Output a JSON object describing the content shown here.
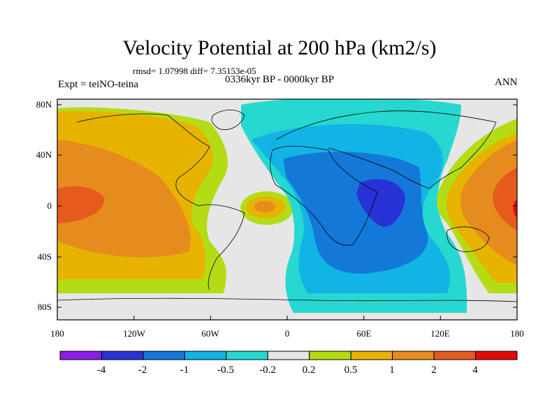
{
  "title": "Velocity Potential at 200 hPa (km2/s)",
  "stats": "rmsd= 1.07998 diff= 7.35153e-05",
  "period": "0336kyr BP - 0000kyr BP",
  "experiment": "Expt = teiNO-teina",
  "season": "ANN",
  "lat_labels": [
    "80N",
    "40N",
    "0",
    "40S",
    "80S"
  ],
  "lon_labels": [
    "180",
    "120W",
    "60W",
    "0",
    "60E",
    "120E",
    "180"
  ],
  "colorbar": {
    "labels": [
      "-4",
      "-2",
      "-1",
      "-0.5",
      "-0.2",
      "0.2",
      "0.5",
      "1",
      "2",
      "4"
    ],
    "colors": [
      "#8a1ee6",
      "#2832d6",
      "#1478d8",
      "#12b4e6",
      "#26d8d0",
      "#e6e6e6",
      "#b4dc14",
      "#e6b400",
      "#e68c1e",
      "#e65a1e",
      "#e60a0a"
    ]
  },
  "chart_data": {
    "type": "heatmap",
    "projection": "cylindrical equidistant",
    "xlim": [
      -180,
      180
    ],
    "ylim": [
      -90,
      90
    ],
    "levels": [
      -4,
      -2,
      -1,
      -0.5,
      -0.2,
      0.2,
      0.5,
      1,
      2,
      4
    ]
  }
}
